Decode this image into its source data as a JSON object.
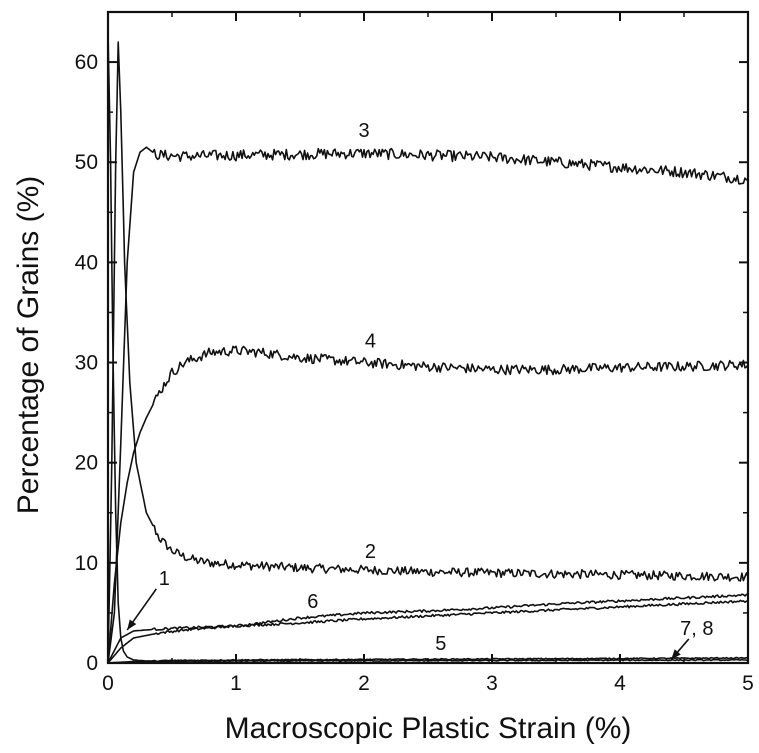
{
  "chart_data": {
    "type": "line",
    "title": "",
    "xlabel": "Macroscopic Plastic Strain (%)",
    "ylabel": "Percentage of Grains (%)",
    "xlim": [
      0,
      5
    ],
    "ylim": [
      0,
      65
    ],
    "xticks": [
      0,
      1,
      2,
      3,
      4,
      5
    ],
    "yticks": [
      0,
      10,
      20,
      30,
      40,
      50,
      60
    ],
    "grid": false,
    "legend": "none",
    "line_color": "#111111",
    "series": [
      {
        "name": "1",
        "label": "1",
        "x": [
          0,
          0.02,
          0.04,
          0.06,
          0.08,
          0.1,
          0.12,
          0.15,
          0.2,
          0.3,
          0.5
        ],
        "y": [
          63,
          50,
          30,
          15,
          6,
          2.5,
          1.2,
          0.6,
          0.3,
          0.2,
          0.1
        ]
      },
      {
        "name": "2",
        "label": "2",
        "x": [
          0,
          0.03,
          0.06,
          0.08,
          0.1,
          0.13,
          0.17,
          0.22,
          0.3,
          0.4,
          0.5,
          0.6,
          0.7,
          0.8,
          1.0,
          1.5,
          2.0,
          2.5,
          3.0,
          3.5,
          4.0,
          4.5,
          5.0
        ],
        "y": [
          0,
          20,
          50,
          62,
          55,
          40,
          28,
          20,
          15,
          12.5,
          11.2,
          10.6,
          10.2,
          10.0,
          9.8,
          9.5,
          9.3,
          9.1,
          9.0,
          8.9,
          8.8,
          8.7,
          8.6
        ]
      },
      {
        "name": "3",
        "label": "3",
        "x": [
          0,
          0.05,
          0.1,
          0.15,
          0.2,
          0.25,
          0.3,
          0.35,
          0.4,
          0.6,
          1.0,
          1.5,
          2.0,
          2.5,
          3.0,
          3.5,
          4.0,
          4.5,
          5.0
        ],
        "y": [
          0,
          5,
          22,
          40,
          49,
          51,
          51.5,
          51,
          50.7,
          50.6,
          50.7,
          50.8,
          50.9,
          50.7,
          50.5,
          50.0,
          49.5,
          49.0,
          48.3
        ]
      },
      {
        "name": "4",
        "label": "4",
        "x": [
          0,
          0.05,
          0.1,
          0.15,
          0.2,
          0.25,
          0.3,
          0.4,
          0.5,
          0.6,
          0.8,
          1.0,
          1.2,
          1.5,
          2.0,
          2.5,
          3.0,
          3.5,
          4.0,
          4.5,
          5.0
        ],
        "y": [
          0,
          8,
          14,
          18,
          21,
          23,
          24.5,
          27,
          29,
          30,
          31,
          31.2,
          31,
          30.5,
          30,
          29.6,
          29.3,
          29.3,
          29.5,
          29.6,
          29.8
        ]
      },
      {
        "name": "5",
        "label": "5",
        "x": [
          0,
          0.1,
          0.2,
          0.4,
          0.6,
          0.8,
          1.0,
          1.5,
          2.0,
          2.5,
          3.0,
          3.5,
          4.0,
          4.5,
          5.0
        ],
        "y": [
          0,
          1.5,
          2.5,
          3.0,
          3.3,
          3.5,
          3.7,
          4.0,
          4.4,
          4.7,
          5.0,
          5.3,
          5.6,
          5.9,
          6.2
        ]
      },
      {
        "name": "6",
        "label": "6",
        "x": [
          0,
          0.1,
          0.2,
          0.4,
          0.6,
          0.8,
          1.0,
          1.2,
          1.5,
          2.0,
          2.5,
          3.0,
          3.5,
          4.0,
          4.5,
          5.0
        ],
        "y": [
          0,
          2.5,
          3.2,
          3.4,
          3.5,
          3.6,
          3.7,
          4.0,
          4.5,
          5.0,
          5.2,
          5.5,
          5.9,
          6.2,
          6.5,
          6.8
        ]
      },
      {
        "name": "7",
        "label": "7, 8",
        "x": [
          0,
          0.2,
          0.5,
          1.0,
          2.0,
          3.0,
          4.0,
          5.0
        ],
        "y": [
          0,
          0.15,
          0.25,
          0.3,
          0.35,
          0.4,
          0.45,
          0.5
        ]
      },
      {
        "name": "8",
        "label": "7, 8",
        "x": [
          0,
          0.2,
          0.5,
          1.0,
          2.0,
          3.0,
          4.0,
          5.0
        ],
        "y": [
          0,
          0.1,
          0.15,
          0.2,
          0.22,
          0.25,
          0.28,
          0.3
        ]
      }
    ],
    "annotations": [
      {
        "text": "3",
        "x": 2.0,
        "y": 52.5
      },
      {
        "text": "4",
        "x": 2.05,
        "y": 31.5
      },
      {
        "text": "2",
        "x": 2.05,
        "y": 10.5
      },
      {
        "text": "6",
        "x": 1.6,
        "y": 5.5
      },
      {
        "text": "5",
        "x": 2.6,
        "y": 1.3
      },
      {
        "text": "1",
        "x": 0.44,
        "y": 7.8,
        "arrow_to": {
          "x": 0.15,
          "y": 3.3
        }
      },
      {
        "text": "7, 8",
        "x": 4.6,
        "y": 2.8,
        "arrow_to": {
          "x": 4.4,
          "y": 0.35
        }
      }
    ]
  }
}
